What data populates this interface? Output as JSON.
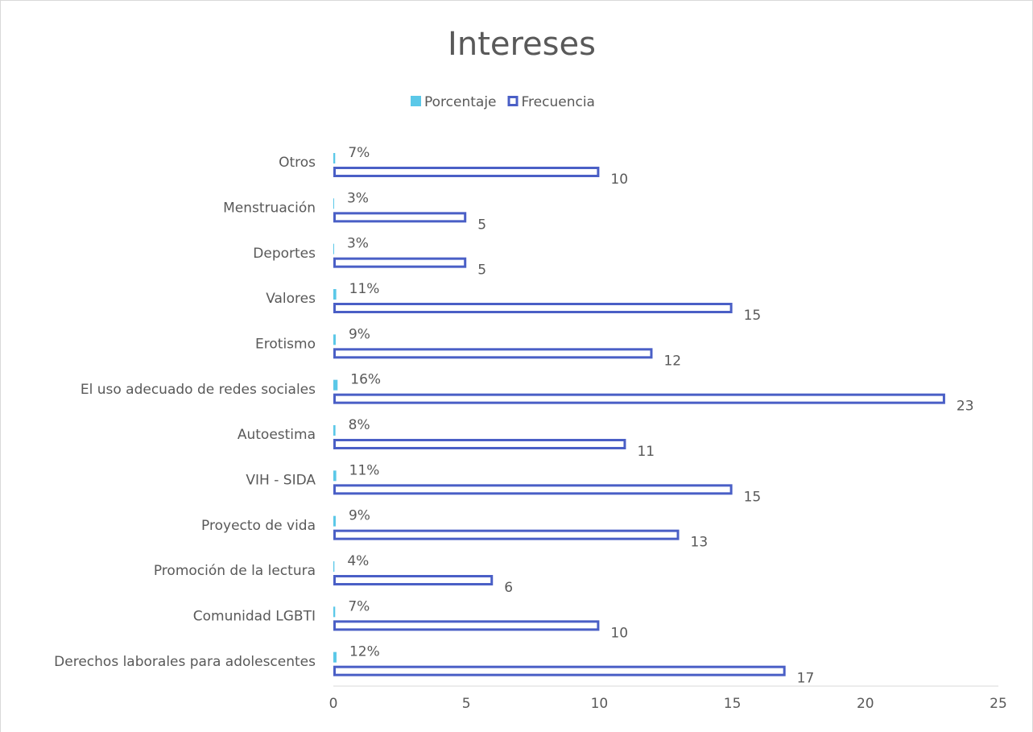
{
  "chart_data": {
    "type": "bar",
    "orientation": "horizontal",
    "title": "Intereses",
    "categories": [
      "Otros",
      "Menstruación",
      "Deportes",
      "Valores",
      "Erotismo",
      "El uso adecuado de redes sociales",
      "Autoestima",
      "VIH - SIDA",
      "Proyecto de vida",
      "Promoción de la lectura",
      "Comunidad LGBTI",
      "Derechos laborales para adolescentes"
    ],
    "series": [
      {
        "name": "Porcentaje",
        "color": "#5bc8e8",
        "style": "filled",
        "values": [
          0.07,
          0.03,
          0.03,
          0.11,
          0.09,
          0.16,
          0.08,
          0.11,
          0.09,
          0.04,
          0.07,
          0.12
        ],
        "value_labels": [
          "7%",
          "3%",
          "3%",
          "11%",
          "9%",
          "16%",
          "8%",
          "11%",
          "9%",
          "4%",
          "7%",
          "12%"
        ]
      },
      {
        "name": "Frecuencia",
        "color": "#4a5fc6",
        "style": "outlined",
        "values": [
          10,
          5,
          5,
          15,
          12,
          23,
          11,
          15,
          13,
          6,
          10,
          17
        ]
      }
    ],
    "xlim": [
      0,
      25
    ],
    "xticks": [
      0,
      5,
      10,
      15,
      20,
      25
    ],
    "grid": false,
    "legend": "top"
  }
}
